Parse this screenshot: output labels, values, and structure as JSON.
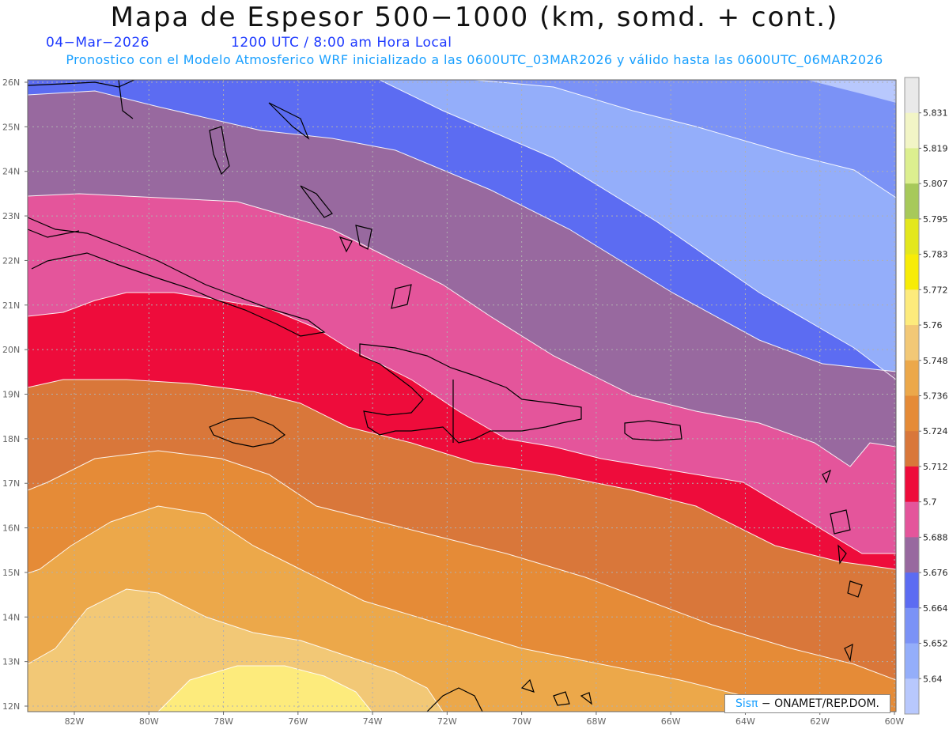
{
  "header": {
    "title": "Mapa de Espesor 500−1000 (km, somd. + cont.)",
    "date": "04−Mar−2026",
    "time": "1200 UTC / 8:00 am Hora Local",
    "subtitle": "Pronostico con el Modelo Atmosferico WRF inicializado a las 0600UTC_03MAR2026 y válido hasta las  0600UTC_06MAR2026"
  },
  "axes": {
    "lat_labels": [
      "26N",
      "25N",
      "24N",
      "23N",
      "22N",
      "21N",
      "20N",
      "19N",
      "18N",
      "17N",
      "16N",
      "15N",
      "14N",
      "13N",
      "12N"
    ],
    "lon_labels": [
      "82W",
      "80W",
      "78W",
      "76W",
      "74W",
      "72W",
      "70W",
      "68W",
      "66W",
      "64W",
      "62W",
      "60W"
    ]
  },
  "colorbar": {
    "labels": [
      "5.831",
      "5.819",
      "5.807",
      "5.795",
      "5.783",
      "5.772",
      "5.76",
      "5.748",
      "5.736",
      "5.724",
      "5.712",
      "5.7",
      "5.688",
      "5.676",
      "5.664",
      "5.652",
      "5.64"
    ],
    "colors": [
      "#e9e9e9",
      "#f2f5c6",
      "#dcef8f",
      "#a7c95a",
      "#e3e71d",
      "#f7ec07",
      "#fdeb7c",
      "#f2c876",
      "#eca84a",
      "#e58b37",
      "#d9773a",
      "#ee0c3b",
      "#e4559b",
      "#98699f",
      "#5c6cf2",
      "#7b92f6",
      "#94aefa",
      "#b8c8fd"
    ]
  },
  "credit": {
    "sis": "Sisπ",
    "org": " − ONAMET/REP.DOM."
  }
}
